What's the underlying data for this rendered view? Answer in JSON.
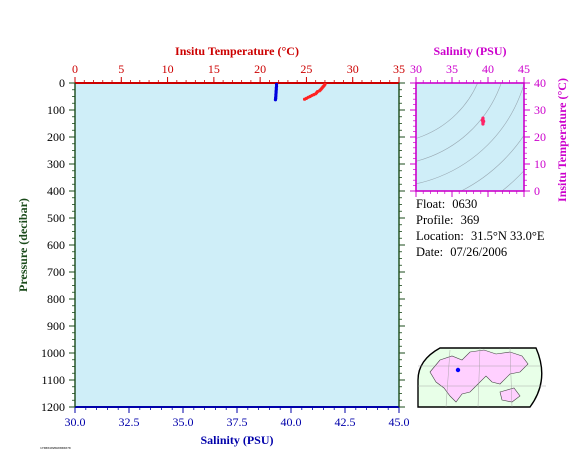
{
  "colors": {
    "plot_bg": "#cfeef8",
    "temp": "#cc0000",
    "salinity": "#0000aa",
    "inset_axis": "#cc00cc",
    "pressure_axis": "#1a4a1a",
    "temp_points": "#ff2222",
    "sal_points": "#0000dd",
    "map_land": "#ffd0ff",
    "map_ocean": "#e8ffe8"
  },
  "chart_data": [
    {
      "type": "scatter",
      "title": "",
      "x_top_label": "Insitu Temperature (°C)",
      "x_top_ticks": [
        "0",
        "5",
        "10",
        "15",
        "20",
        "25",
        "30",
        "35"
      ],
      "x_top_lim": [
        0,
        35
      ],
      "x_bottom_label": "Salinity (PSU)",
      "x_bottom_ticks": [
        "30.0",
        "32.5",
        "35.0",
        "37.5",
        "40.0",
        "42.5",
        "45.0"
      ],
      "x_bottom_lim": [
        30,
        45
      ],
      "ylabel": "Pressure (decibar)",
      "y_ticks": [
        "0",
        "100",
        "200",
        "300",
        "400",
        "500",
        "600",
        "700",
        "800",
        "900",
        "1000",
        "1100",
        "1200"
      ],
      "ylim": [
        1200,
        0
      ],
      "series": [
        {
          "axis": "temperature",
          "points": [
            {
              "x": 27.0,
              "y": 5
            },
            {
              "x": 26.9,
              "y": 10
            },
            {
              "x": 26.8,
              "y": 14
            },
            {
              "x": 26.7,
              "y": 18
            },
            {
              "x": 26.6,
              "y": 22
            },
            {
              "x": 26.5,
              "y": 26
            },
            {
              "x": 26.4,
              "y": 29
            },
            {
              "x": 26.2,
              "y": 32
            },
            {
              "x": 26.1,
              "y": 36
            },
            {
              "x": 26.0,
              "y": 40
            },
            {
              "x": 25.8,
              "y": 43
            },
            {
              "x": 25.6,
              "y": 46
            },
            {
              "x": 25.4,
              "y": 50
            },
            {
              "x": 25.2,
              "y": 53
            },
            {
              "x": 25.0,
              "y": 57
            },
            {
              "x": 24.8,
              "y": 60
            }
          ]
        },
        {
          "axis": "salinity",
          "points": [
            {
              "x": 39.33,
              "y": 5
            },
            {
              "x": 39.33,
              "y": 12
            },
            {
              "x": 39.32,
              "y": 18
            },
            {
              "x": 39.32,
              "y": 24
            },
            {
              "x": 39.31,
              "y": 30
            },
            {
              "x": 39.31,
              "y": 36
            },
            {
              "x": 39.3,
              "y": 42
            },
            {
              "x": 39.3,
              "y": 48
            },
            {
              "x": 39.29,
              "y": 54
            },
            {
              "x": 39.29,
              "y": 58
            },
            {
              "x": 39.28,
              "y": 62
            }
          ]
        }
      ]
    },
    {
      "type": "scatter",
      "title": "",
      "xlabel": "Salinity (PSU)",
      "x_ticks": [
        "30",
        "35",
        "40",
        "45"
      ],
      "xlim": [
        30,
        45
      ],
      "ylabel": "Insitu Temperature (°C)",
      "y_ticks": [
        "0",
        "10",
        "20",
        "30",
        "40"
      ],
      "ylim": [
        0,
        40
      ],
      "points": [
        {
          "x": 39.3,
          "y": 27.0
        },
        {
          "x": 39.3,
          "y": 26.7
        },
        {
          "x": 39.3,
          "y": 26.4
        },
        {
          "x": 39.3,
          "y": 26.0
        },
        {
          "x": 39.3,
          "y": 25.6
        },
        {
          "x": 39.3,
          "y": 25.2
        },
        {
          "x": 39.3,
          "y": 24.8
        },
        {
          "x": 39.2,
          "y": 26.2
        },
        {
          "x": 39.4,
          "y": 25.8
        }
      ]
    }
  ],
  "info": {
    "float_label": "Float:",
    "float_value": "0630",
    "profile_label": "Profile:",
    "profile_value": "369",
    "location_label": "Location:",
    "location_value": "31.5°N  33.0°E",
    "date_label": "Date:",
    "date_value": "07/26/2006"
  },
  "footer_stamp": "1708049VRU0006070"
}
